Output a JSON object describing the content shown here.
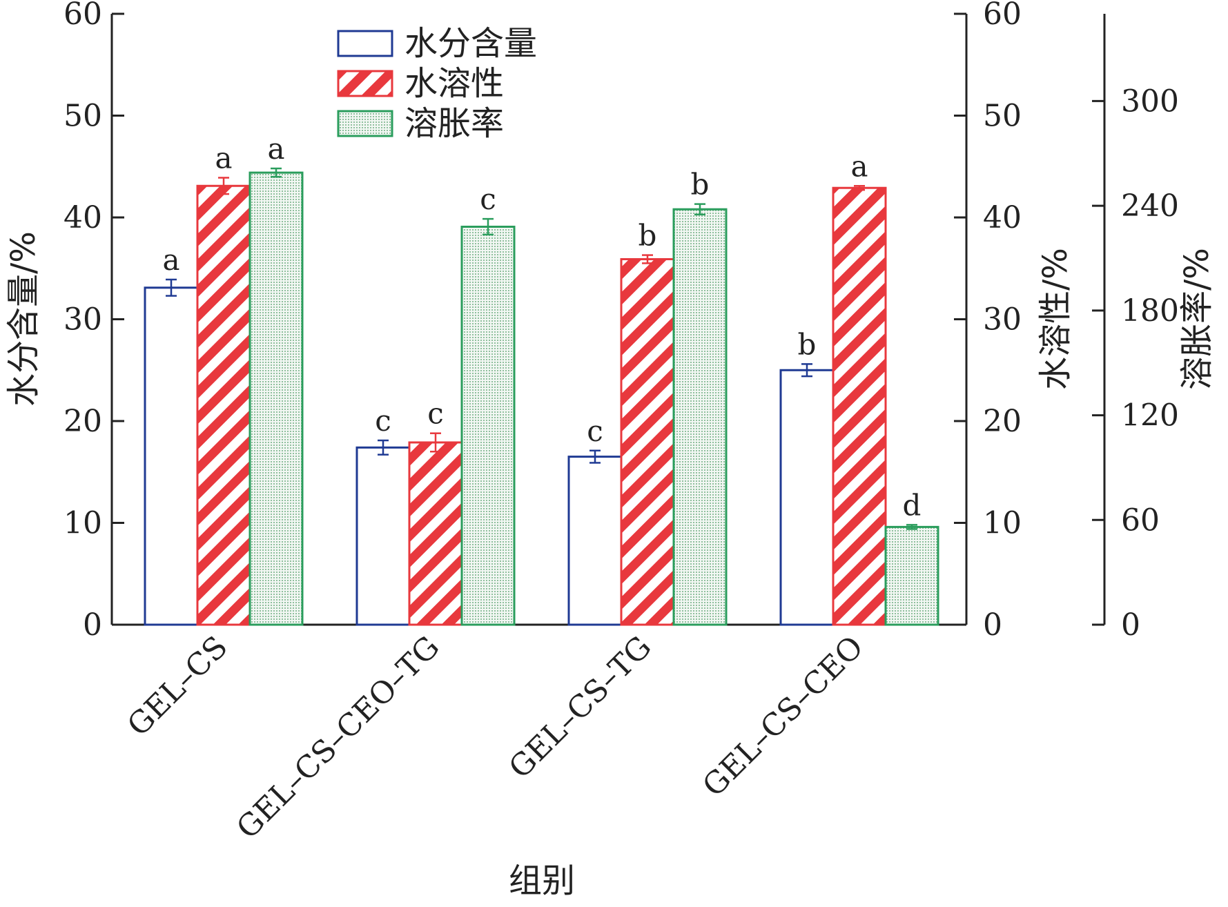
{
  "chart_data": {
    "type": "bar",
    "categories": [
      "GEL–CS",
      "GEL–CS–CEO–TG",
      "GEL–CS–TG",
      "GEL–CS–CEO"
    ],
    "xlabel": "组别",
    "series": [
      {
        "name": "水分含量",
        "axis": "y1",
        "color": "#1f3a93",
        "pattern": "none",
        "values": [
          33.1,
          17.4,
          16.5,
          25.0
        ],
        "errors": [
          0.8,
          0.7,
          0.6,
          0.6
        ],
        "labels": [
          "a",
          "c",
          "c",
          "b"
        ]
      },
      {
        "name": "水溶性",
        "axis": "y2",
        "color": "#e8383d",
        "pattern": "diagonal-stripes",
        "values": [
          43.1,
          17.9,
          35.9,
          42.9
        ],
        "errors": [
          0.8,
          0.9,
          0.4,
          0.2
        ],
        "labels": [
          "a",
          "c",
          "b",
          "a"
        ]
      },
      {
        "name": "溶胀率",
        "axis": "y3",
        "color": "#2a9d5c",
        "pattern": "dots",
        "values": [
          259,
          228,
          238,
          56
        ],
        "errors": [
          2.4,
          4.5,
          3.0,
          1.2
        ],
        "labels": [
          "a",
          "c",
          "b",
          "d"
        ]
      }
    ],
    "axes": {
      "y1": {
        "label": "水分含量/%",
        "range": [
          0,
          60
        ],
        "ticks": [
          0,
          10,
          20,
          30,
          40,
          50,
          60
        ]
      },
      "y2": {
        "label": "水溶性/%",
        "range": [
          0,
          60
        ],
        "ticks": [
          0,
          10,
          20,
          30,
          40,
          50,
          60
        ]
      },
      "y3": {
        "label": "溶胀率/%",
        "range": [
          0,
          350
        ],
        "ticks": [
          0,
          60,
          120,
          180,
          240,
          300
        ]
      }
    },
    "legend": {
      "placement": "top-center"
    },
    "grid": false
  }
}
